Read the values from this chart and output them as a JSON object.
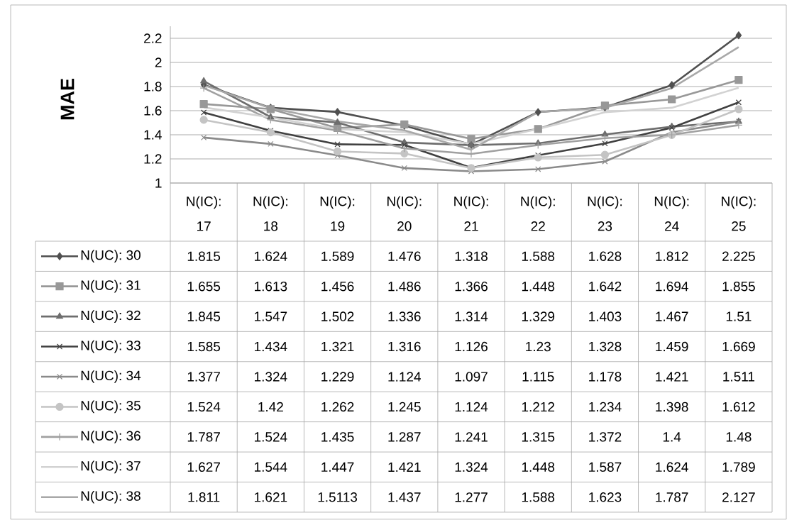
{
  "chart_data": {
    "type": "line",
    "ylabel": "MAE",
    "categories": [
      "N(IC): 17",
      "N(IC): 18",
      "N(IC): 19",
      "N(IC): 20",
      "N(IC): 21",
      "N(IC): 22",
      "N(IC): 23",
      "N(IC): 24",
      "N(IC): 25"
    ],
    "ylim": [
      1,
      2.3
    ],
    "yticks": [
      1,
      1.2,
      1.4,
      1.6,
      1.8,
      2,
      2.2
    ],
    "grid": "y",
    "legend": "bottom",
    "data_labels": true,
    "series": [
      {
        "name": "N(UC): 30",
        "color": "#505050",
        "marker": "diamond",
        "values": [
          1.815,
          1.624,
          1.589,
          1.476,
          1.318,
          1.588,
          1.628,
          1.812,
          2.225
        ]
      },
      {
        "name": "N(UC): 31",
        "color": "#989898",
        "marker": "square",
        "values": [
          1.655,
          1.613,
          1.456,
          1.486,
          1.366,
          1.448,
          1.642,
          1.694,
          1.855
        ]
      },
      {
        "name": "N(UC): 32",
        "color": "#6e6e6e",
        "marker": "triangle",
        "values": [
          1.845,
          1.547,
          1.502,
          1.336,
          1.314,
          1.329,
          1.403,
          1.467,
          1.51
        ]
      },
      {
        "name": "N(UC): 33",
        "color": "#404040",
        "marker": "cross",
        "values": [
          1.585,
          1.434,
          1.321,
          1.316,
          1.126,
          1.23,
          1.328,
          1.459,
          1.669
        ]
      },
      {
        "name": "N(UC): 34",
        "color": "#8a8a8a",
        "marker": "cross",
        "values": [
          1.377,
          1.324,
          1.229,
          1.124,
          1.097,
          1.115,
          1.178,
          1.421,
          1.511
        ]
      },
      {
        "name": "N(UC): 35",
        "color": "#c4c4c4",
        "marker": "circle",
        "values": [
          1.524,
          1.42,
          1.262,
          1.245,
          1.124,
          1.212,
          1.234,
          1.398,
          1.612
        ]
      },
      {
        "name": "N(UC): 36",
        "color": "#a0a0a0",
        "marker": "plus",
        "values": [
          1.787,
          1.524,
          1.435,
          1.287,
          1.241,
          1.315,
          1.372,
          1.4,
          1.48
        ]
      },
      {
        "name": "N(UC): 37",
        "color": "#d2d2d2",
        "marker": "none",
        "values": [
          1.627,
          1.544,
          1.447,
          1.421,
          1.324,
          1.448,
          1.587,
          1.624,
          1.789
        ]
      },
      {
        "name": "N(UC): 38",
        "color": "#a8a8a8",
        "marker": "none",
        "values": [
          1.811,
          1.621,
          1.5113,
          1.437,
          1.277,
          1.588,
          1.623,
          1.787,
          2.127
        ]
      }
    ]
  }
}
